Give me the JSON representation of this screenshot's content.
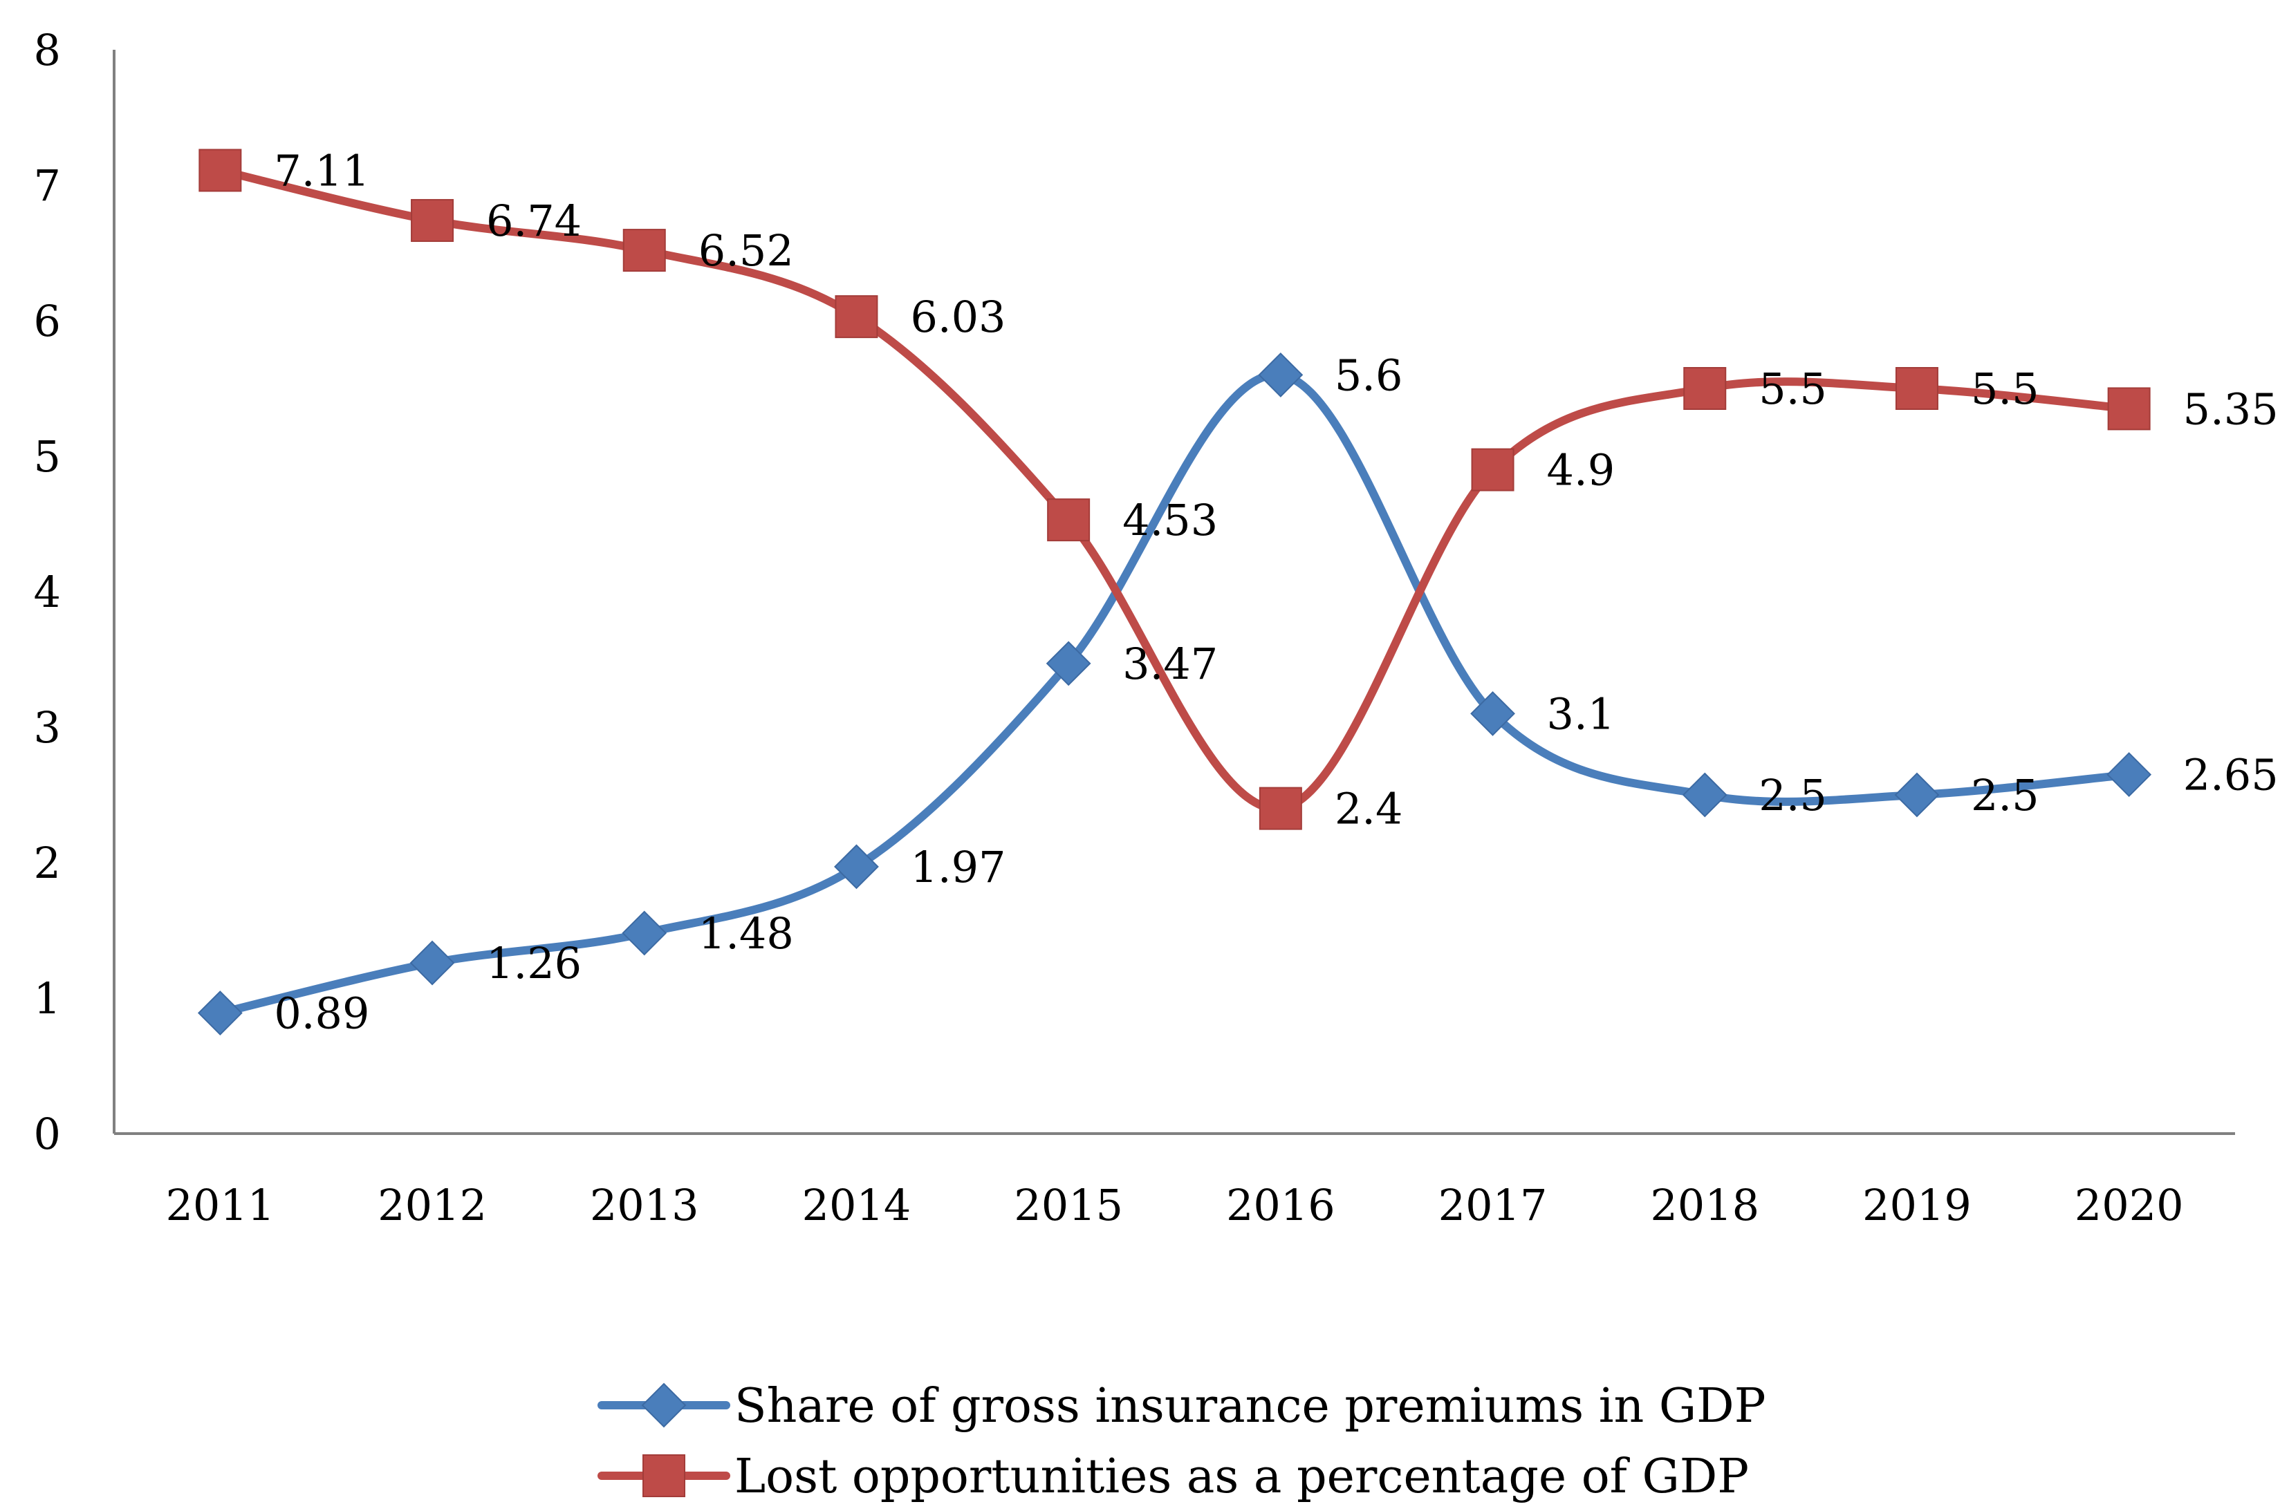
{
  "chart_data": {
    "type": "line",
    "title": "",
    "xlabel": "",
    "ylabel": "",
    "categories": [
      "2011",
      "2012",
      "2013",
      "2014",
      "2015",
      "2016",
      "2017",
      "2018",
      "2019",
      "2020"
    ],
    "ylim": [
      0,
      8
    ],
    "yticks": [
      0,
      1,
      2,
      3,
      4,
      5,
      6,
      7,
      8
    ],
    "grid": false,
    "smooth": true,
    "legend_position": "bottom",
    "series": [
      {
        "name": "Share of gross insurance premiums in GDP",
        "values": [
          0.89,
          1.26,
          1.48,
          1.97,
          3.47,
          5.6,
          3.1,
          2.5,
          2.5,
          2.65
        ],
        "labels": [
          "0.89",
          "1.26",
          "1.48",
          "1.97",
          "3.47",
          "5.6",
          "3.1",
          "2.5",
          "2.5",
          "2.65"
        ],
        "color": "#4a7ebb",
        "marker": "diamond"
      },
      {
        "name": "Lost opportunities as a percentage of GDP",
        "values": [
          7.11,
          6.74,
          6.52,
          6.03,
          4.53,
          2.4,
          4.9,
          5.5,
          5.5,
          5.35
        ],
        "labels": [
          "7.11",
          "6.74",
          "6.52",
          "6.03",
          "4.53",
          "2.4",
          "4.9",
          "5.5",
          "5.5",
          "5.35"
        ],
        "color": "#be4b48",
        "marker": "square"
      }
    ]
  }
}
